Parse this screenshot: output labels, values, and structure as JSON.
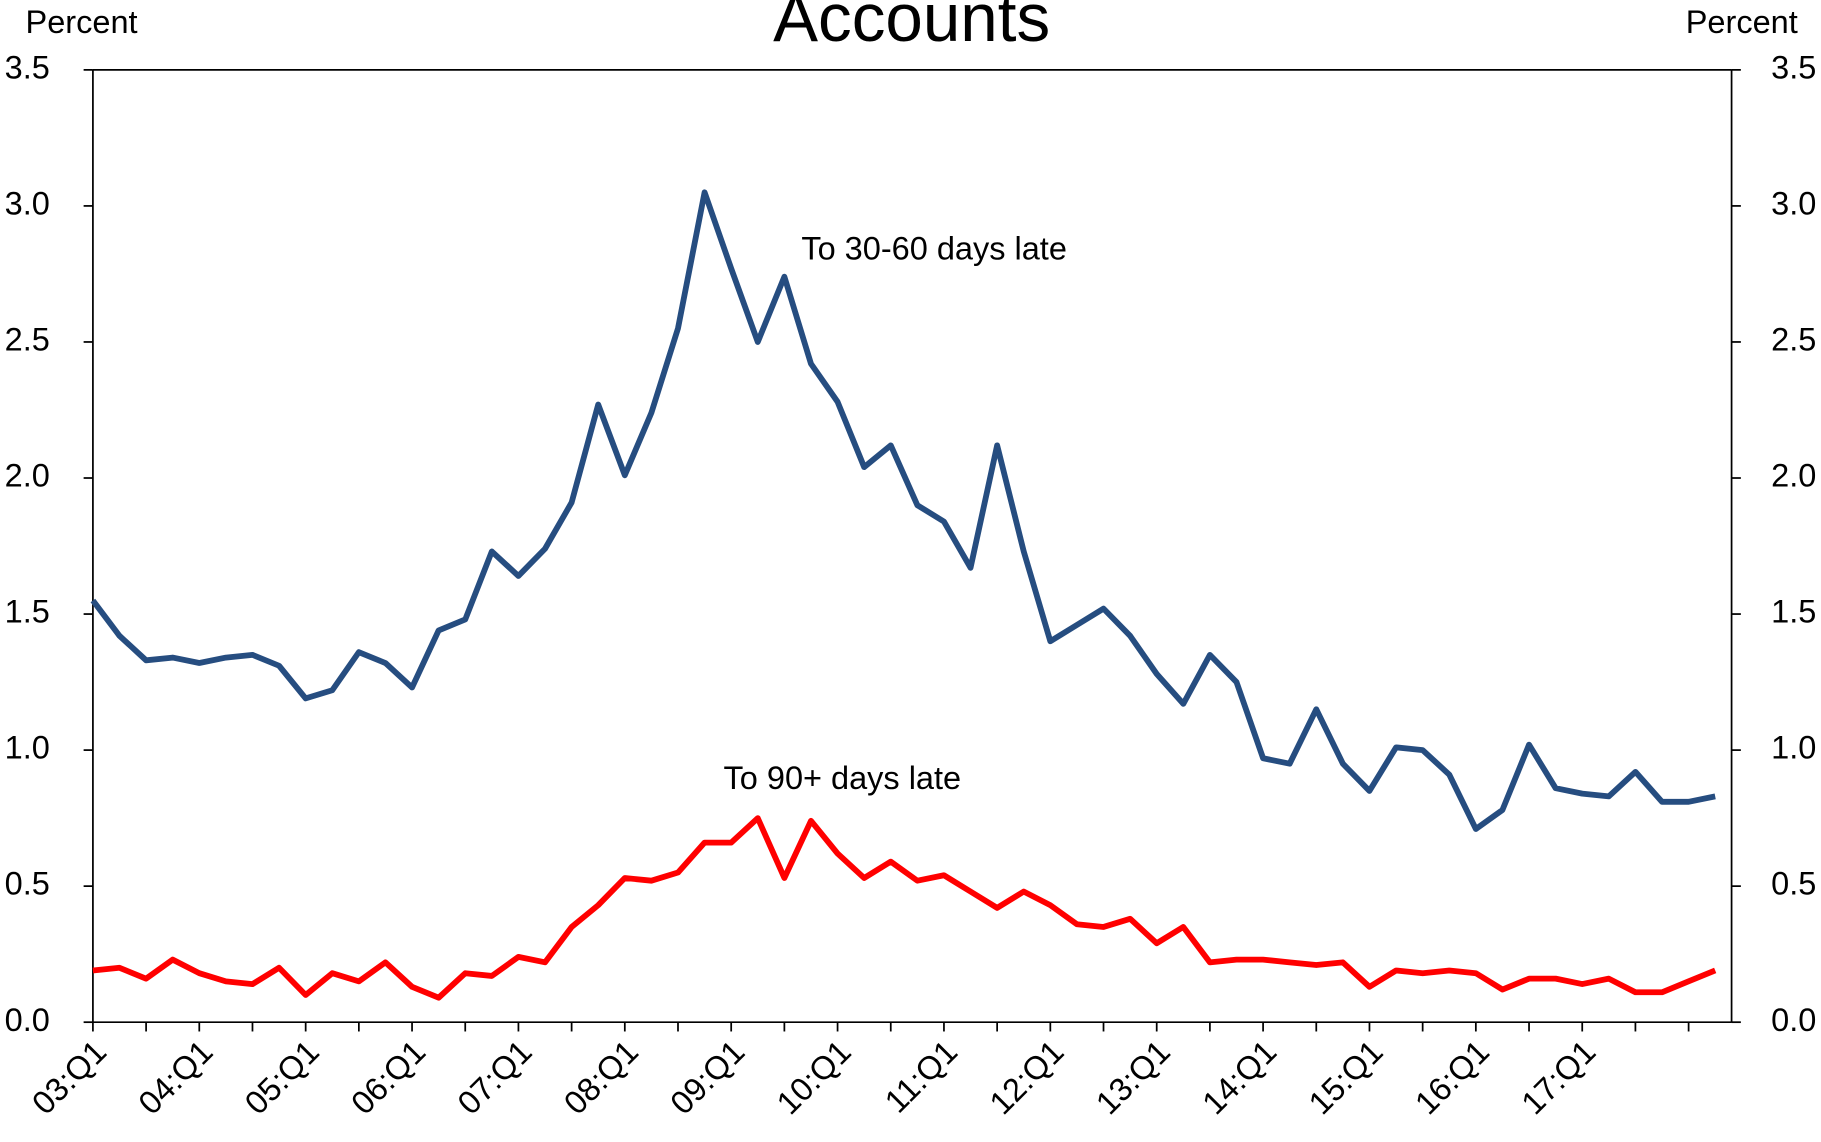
{
  "chart_data": {
    "type": "line",
    "title": "Accounts",
    "y_label": "Percent",
    "y2_label": "Percent",
    "categories": [
      "03:Q1",
      null,
      null,
      null,
      "04:Q1",
      null,
      null,
      null,
      "05:Q1",
      null,
      null,
      null,
      "06:Q1",
      null,
      null,
      null,
      "07:Q1",
      null,
      null,
      null,
      "08:Q1",
      null,
      null,
      null,
      "09:Q1",
      null,
      null,
      null,
      "10:Q1",
      null,
      null,
      null,
      "11:Q1",
      null,
      null,
      null,
      "12:Q1",
      null,
      null,
      null,
      "13:Q1",
      null,
      null,
      null,
      "14:Q1",
      null,
      null,
      null,
      "15:Q1",
      null,
      null,
      null,
      "16:Q1",
      null,
      null,
      null,
      "17:Q1",
      null,
      null,
      null,
      null,
      null
    ],
    "series": [
      {
        "name": "To 30-60 days late",
        "color": "#264d80",
        "values": [
          1.55,
          1.42,
          1.33,
          1.34,
          1.32,
          1.34,
          1.35,
          1.31,
          1.19,
          1.22,
          1.36,
          1.32,
          1.23,
          1.44,
          1.48,
          1.73,
          1.64,
          1.74,
          1.91,
          2.27,
          2.01,
          2.24,
          2.55,
          3.05,
          2.77,
          2.5,
          2.74,
          2.42,
          2.28,
          2.04,
          2.12,
          1.9,
          1.84,
          1.67,
          2.12,
          1.73,
          1.4,
          1.46,
          1.52,
          1.42,
          1.28,
          1.17,
          1.35,
          1.25,
          0.97,
          0.95,
          1.15,
          0.95,
          0.85,
          1.01,
          1.0,
          0.91,
          0.71,
          0.78,
          1.02,
          0.86,
          0.84,
          0.83,
          0.92,
          0.81,
          0.81,
          0.83
        ]
      },
      {
        "name": "To 90+ days late",
        "color": "#ff0000",
        "values": [
          0.19,
          0.2,
          0.16,
          0.23,
          0.18,
          0.15,
          0.14,
          0.2,
          0.1,
          0.18,
          0.15,
          0.22,
          0.13,
          0.09,
          0.18,
          0.17,
          0.24,
          0.22,
          0.35,
          0.43,
          0.53,
          0.52,
          0.55,
          0.66,
          0.66,
          0.75,
          0.53,
          0.74,
          0.62,
          0.53,
          0.59,
          0.52,
          0.54,
          0.48,
          0.42,
          0.48,
          0.43,
          0.36,
          0.35,
          0.38,
          0.29,
          0.35,
          0.22,
          0.23,
          0.23,
          0.22,
          0.21,
          0.22,
          0.13,
          0.19,
          0.18,
          0.19,
          0.18,
          0.12,
          0.16,
          0.16,
          0.14,
          0.16,
          0.11,
          0.11,
          0.15,
          0.19
        ]
      }
    ],
    "ylim": [
      0,
      3.5
    ],
    "yticks": [
      {
        "value": 0,
        "label": "0.0"
      },
      0.5,
      {
        "value": 1,
        "label": "1.0"
      },
      1.5,
      {
        "value": 2,
        "label": "2.0"
      },
      2.5,
      {
        "value": 3,
        "label": "3.0"
      },
      3.5
    ],
    "y2lim": [
      0,
      3.5
    ],
    "y2ticks": [
      {
        "value": 0,
        "label": "0.0"
      },
      0.5,
      {
        "value": 1,
        "label": "1.0"
      },
      1.5,
      {
        "value": 2,
        "label": "2.0"
      },
      2.5,
      {
        "value": 3,
        "label": "3.0"
      },
      3.5
    ]
  }
}
